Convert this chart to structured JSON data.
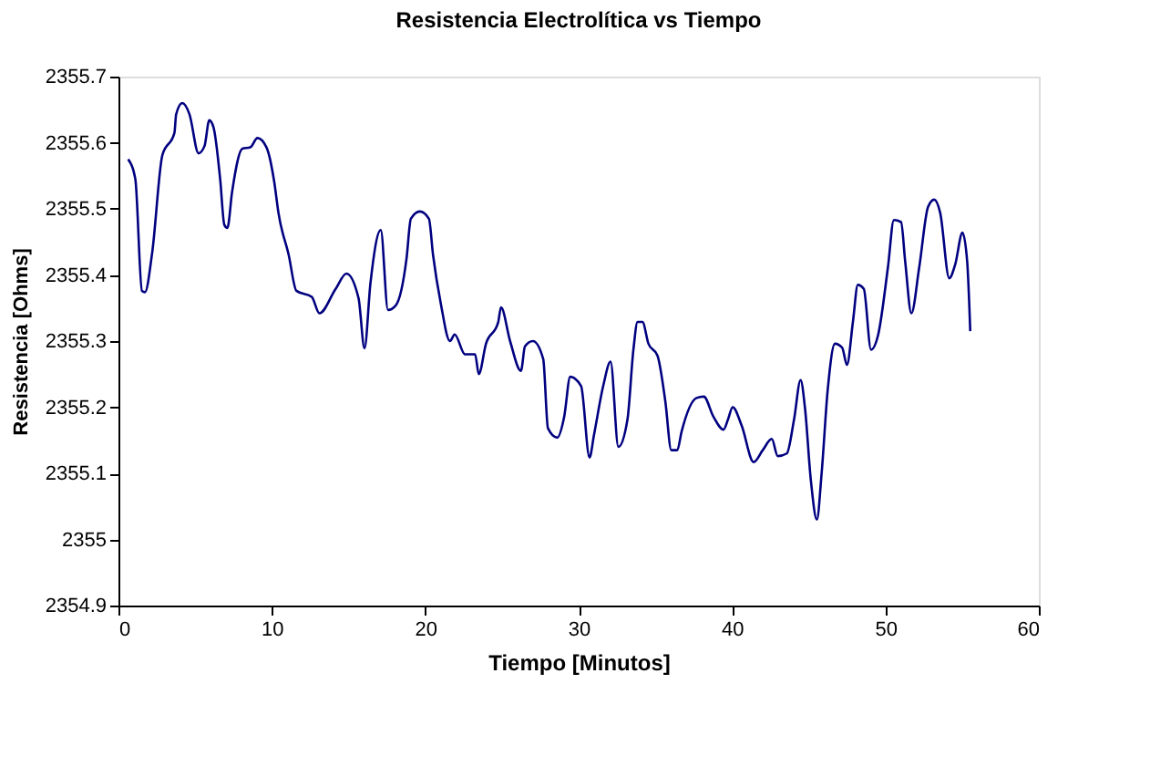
{
  "chart_data": {
    "type": "line",
    "title": "Resistencia Electrolítica vs Tiempo",
    "xlabel": "Tiempo [Minutos]",
    "ylabel": "Resistencia [Ohms]",
    "xlim": [
      0,
      60
    ],
    "xticks": [
      0,
      10,
      20,
      30,
      40,
      50,
      60
    ],
    "ylim": [
      2354.9,
      2355.7
    ],
    "yticks": [
      2354.9,
      2355,
      2355.1,
      2355.2,
      2355.3,
      2355.4,
      2355.5,
      2355.6,
      2355.7
    ],
    "grid": false,
    "marker": "none",
    "line_style": "solid",
    "series": [
      {
        "color": "#000080",
        "x": [
          0.63,
          1.1,
          1.53,
          1.73,
          2.2,
          2.86,
          3.65,
          3.76,
          4.16,
          4.63,
          5.22,
          5.61,
          5.92,
          6.2,
          6.63,
          6.9,
          7.1,
          7.41,
          8.08,
          8.59,
          9.06,
          9.65,
          10.16,
          10.43,
          11.1,
          11.6,
          12.6,
          13.1,
          14.16,
          14.86,
          15.65,
          16.04,
          16.43,
          17.1,
          17.57,
          18.08,
          18.78,
          19.06,
          19.65,
          20.24,
          20.51,
          21.02,
          21.61,
          21.92,
          22.59,
          23.25,
          23.49,
          23.96,
          24.75,
          24.94,
          25.53,
          26.24,
          26.5,
          27.02,
          27.69,
          28.0,
          28.6,
          29.06,
          29.45,
          30.16,
          30.71,
          31.0,
          31.6,
          32.08,
          32.59,
          33.18,
          33.57,
          33.84,
          34.16,
          34.55,
          35.14,
          35.65,
          36.04,
          36.43,
          36.71,
          37.69,
          38.16,
          38.78,
          39.45,
          39.73,
          40.04,
          40.63,
          41.41,
          42.0,
          42.59,
          42.98,
          43.57,
          44.04,
          44.47,
          44.75,
          45.14,
          45.53,
          45.84,
          46.24,
          46.71,
          47.18,
          47.49,
          47.88,
          48.2,
          48.59,
          49.06,
          49.53,
          50.16,
          50.55,
          51.02,
          51.29,
          51.69,
          52.2,
          52.78,
          53.18,
          53.57,
          54.16,
          54.55,
          55.02,
          55.33,
          55.53
        ],
        "values": [
          2355.575,
          2355.545,
          2355.376,
          2355.374,
          2355.434,
          2355.581,
          2355.615,
          2355.643,
          2355.66,
          2355.643,
          2355.584,
          2355.595,
          2355.634,
          2355.623,
          2355.545,
          2355.476,
          2355.471,
          2355.526,
          2355.591,
          2355.593,
          2355.607,
          2355.593,
          2355.54,
          2355.494,
          2355.43,
          2355.376,
          2355.367,
          2355.342,
          2355.379,
          2355.402,
          2355.365,
          2355.289,
          2355.388,
          2355.468,
          2355.347,
          2355.354,
          2355.425,
          2355.485,
          2355.496,
          2355.485,
          2355.43,
          2355.356,
          2355.3,
          2355.31,
          2355.28,
          2355.28,
          2355.25,
          2355.296,
          2355.328,
          2355.351,
          2355.3,
          2355.255,
          2355.292,
          2355.3,
          2355.273,
          2355.168,
          2355.154,
          2355.186,
          2355.246,
          2355.232,
          2355.124,
          2355.158,
          2355.232,
          2355.269,
          2355.14,
          2355.181,
          2355.287,
          2355.329,
          2355.329,
          2355.296,
          2355.278,
          2355.209,
          2355.135,
          2355.135,
          2355.163,
          2355.214,
          2355.216,
          2355.186,
          2355.166,
          2355.181,
          2355.2,
          2355.172,
          2355.117,
          2355.135,
          2355.152,
          2355.126,
          2355.13,
          2355.181,
          2355.241,
          2355.2,
          2355.089,
          2355.03,
          2355.1,
          2355.227,
          2355.296,
          2355.29,
          2355.264,
          2355.329,
          2355.385,
          2355.379,
          2355.287,
          2355.31,
          2355.411,
          2355.483,
          2355.48,
          2355.42,
          2355.342,
          2355.411,
          2355.503,
          2355.514,
          2355.494,
          2355.395,
          2355.416,
          2355.464,
          2355.42,
          2355.315
        ]
      }
    ]
  }
}
